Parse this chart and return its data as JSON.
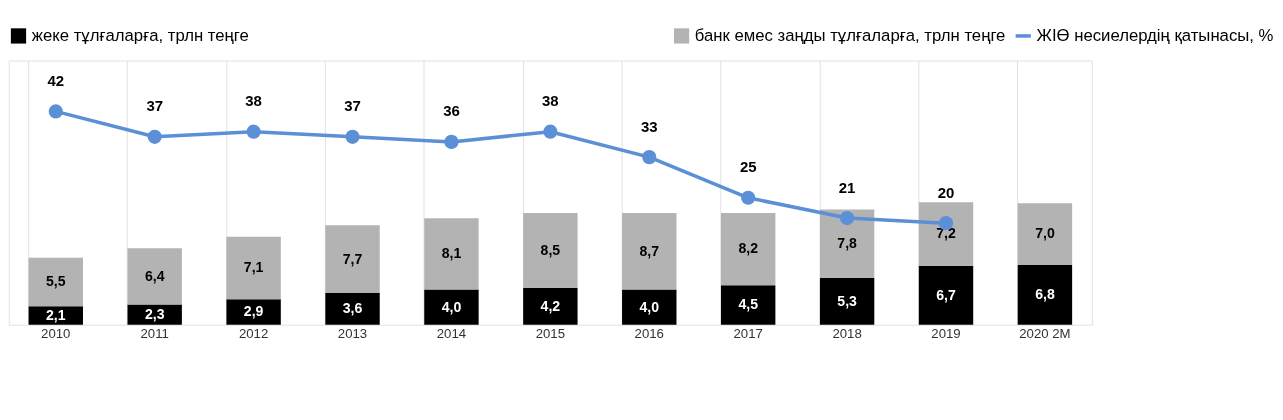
{
  "chart_data": {
    "type": "bar",
    "stacked": true,
    "grid": "x",
    "legend": "top",
    "tick_labels": "x",
    "categories": [
      "2010",
      "2011",
      "2012",
      "2013",
      "2014",
      "2015",
      "2016",
      "2017",
      "2018",
      "2019",
      "2020 2M"
    ],
    "ylim": [
      0,
      30
    ],
    "y2lim": [
      0,
      52
    ],
    "series": [
      {
        "name": "жеке тұлғаларға, трлн теңге",
        "color": "#000000",
        "values": [
          2.1,
          2.3,
          2.9,
          3.6,
          4.0,
          4.2,
          4.0,
          4.5,
          5.3,
          6.7,
          6.8
        ],
        "value_labels": [
          "2,1",
          "2,3",
          "2,9",
          "3,6",
          "4,0",
          "4,2",
          "4,0",
          "4,5",
          "5,3",
          "6,7",
          "6,8"
        ]
      },
      {
        "name": "банк емес заңды тұлғаларға, трлн теңге",
        "color": "#b3b3b3",
        "values": [
          5.5,
          6.4,
          7.1,
          7.7,
          8.1,
          8.5,
          8.7,
          8.2,
          7.8,
          7.2,
          7.0
        ],
        "value_labels": [
          "5,5",
          "6,4",
          "7,1",
          "7,7",
          "8,1",
          "8,5",
          "8,7",
          "8,2",
          "7,8",
          "7,2",
          "7,0"
        ]
      },
      {
        "name": "ЖІӨ несиелердің қатынасы, %",
        "type": "line",
        "axis": "y2",
        "marker": "circle",
        "line_style": "solid",
        "color": "#5b8fd6",
        "values": [
          42,
          37,
          38,
          37,
          36,
          38,
          33,
          25,
          21,
          20,
          null
        ],
        "value_labels": [
          "42",
          "37",
          "38",
          "37",
          "36",
          "38",
          "33",
          "25",
          "21",
          "20",
          null
        ]
      }
    ]
  }
}
